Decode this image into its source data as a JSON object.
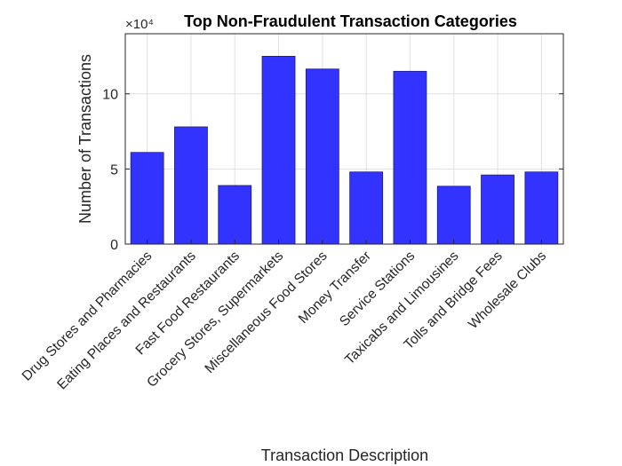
{
  "chart_data": {
    "type": "bar",
    "title": "Top Non-Fraudulent Transaction Categories",
    "xlabel": "Transaction Description",
    "ylabel": "Number of Transactions",
    "y_exponent_label": "×10⁴",
    "categories": [
      "Drug Stores and Pharmacies",
      "Eating Places and Restaurants",
      "Fast Food Restaurants",
      "Grocery Stores, Supermarkets",
      "Miscellaneous Food Stores",
      "Money Transfer",
      "Service Stations",
      "Taxicabs and Limousines",
      "Tolls and Bridge Fees",
      "Wholesale Clubs"
    ],
    "values": [
      61000,
      78000,
      39000,
      125000,
      116500,
      48000,
      115000,
      38500,
      46000,
      48000
    ],
    "ylim": [
      0,
      140000
    ],
    "yticks": [
      0,
      50000,
      100000
    ],
    "ytick_labels": [
      "0",
      "5",
      "10"
    ],
    "grid": true,
    "colors": {
      "bar": "#3333ff",
      "bar_edge": "#1a1a80",
      "grid": "#e0e0e0",
      "axis": "#262626"
    }
  }
}
